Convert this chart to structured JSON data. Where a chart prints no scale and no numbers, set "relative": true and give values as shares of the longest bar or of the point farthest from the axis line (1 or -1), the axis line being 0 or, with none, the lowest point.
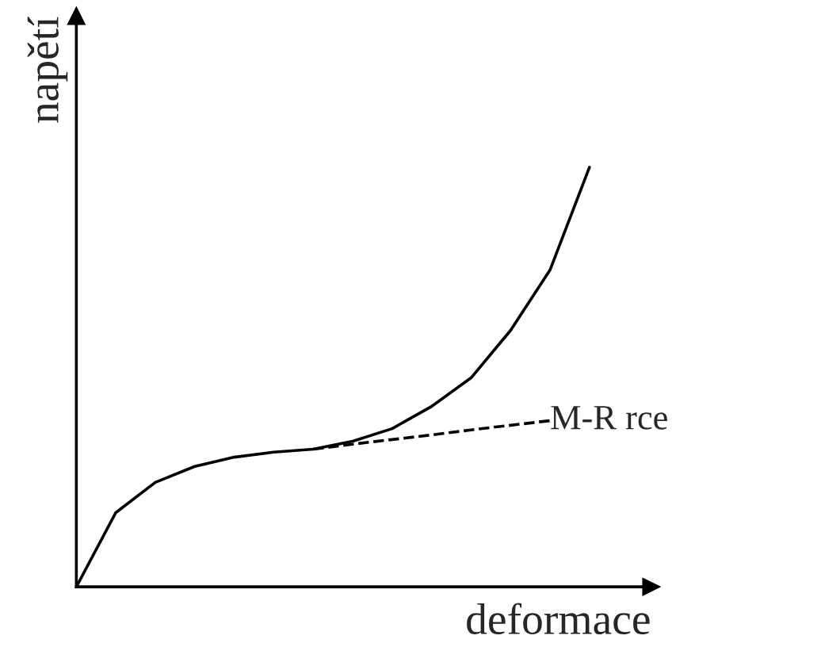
{
  "chart_data": {
    "type": "line",
    "relative": true,
    "xlabel": "deformace",
    "ylabel": "napětí",
    "legend": false,
    "marker": "none",
    "categories": [
      null,
      null,
      null,
      null,
      null,
      null,
      null,
      null,
      null,
      null,
      null,
      null,
      null,
      null
    ],
    "series": [
      {
        "color": "#000000",
        "line_style": "solid",
        "values": [
          0,
          0.177,
          0.249,
          0.287,
          0.309,
          0.321,
          0.328,
          0.347,
          0.377,
          0.43,
          0.498,
          0.611,
          0.755,
          1.0
        ]
      },
      {
        "name": "M-R rce",
        "color": "#000000",
        "line_style": "dashed",
        "values": [
          null,
          null,
          null,
          null,
          null,
          null,
          0.328,
          0.34,
          0.351,
          0.362,
          0.374,
          0.385,
          0.396,
          null
        ]
      }
    ]
  }
}
